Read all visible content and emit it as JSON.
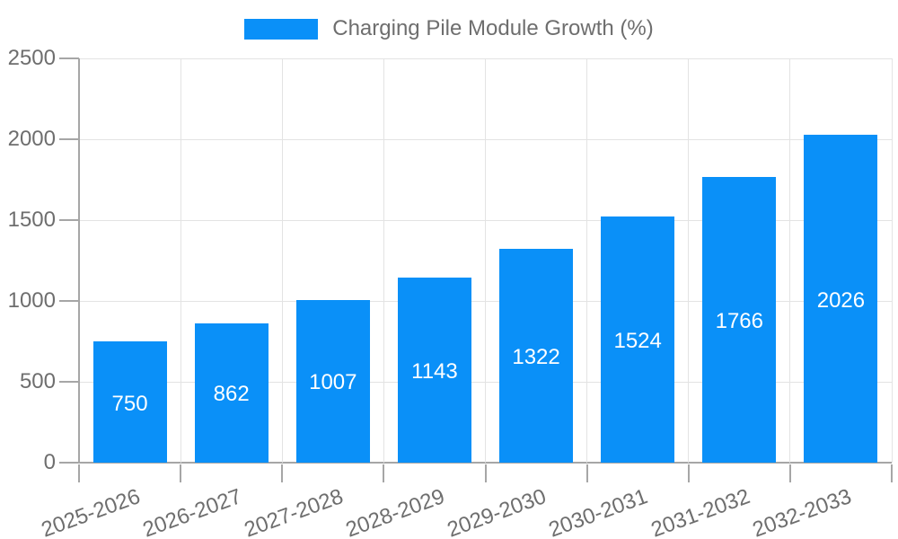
{
  "chart_data": {
    "type": "bar",
    "title": "",
    "legend": {
      "label": "Charging Pile Module Growth (%)",
      "position": "top"
    },
    "categories": [
      "2025-2026",
      "2026-2027",
      "2027-2028",
      "2028-2029",
      "2029-2030",
      "2030-2031",
      "2031-2032",
      "2032-2033"
    ],
    "series": [
      {
        "name": "Charging Pile Module Growth (%)",
        "values": [
          750,
          862,
          1007,
          1143,
          1322,
          1524,
          1766,
          2026
        ]
      }
    ],
    "xlabel": "",
    "ylabel": "",
    "ylim": [
      0,
      2500
    ],
    "yticks": [
      0,
      500,
      1000,
      1500,
      2000,
      2500
    ],
    "grid": true,
    "bar_value_labels_visible": true,
    "x_label_rotation_deg": -20,
    "colors": {
      "bar": "#0A90F8",
      "bar_value_label": "#FFFFFF",
      "tick_text": "#6E6E6E",
      "legend_text": "#6E6E6E",
      "gridline": "#E3E3E3",
      "axis_line": "#A6A6A6",
      "tick_mark": "#A6A6A6",
      "background": "#FFFFFF"
    }
  }
}
